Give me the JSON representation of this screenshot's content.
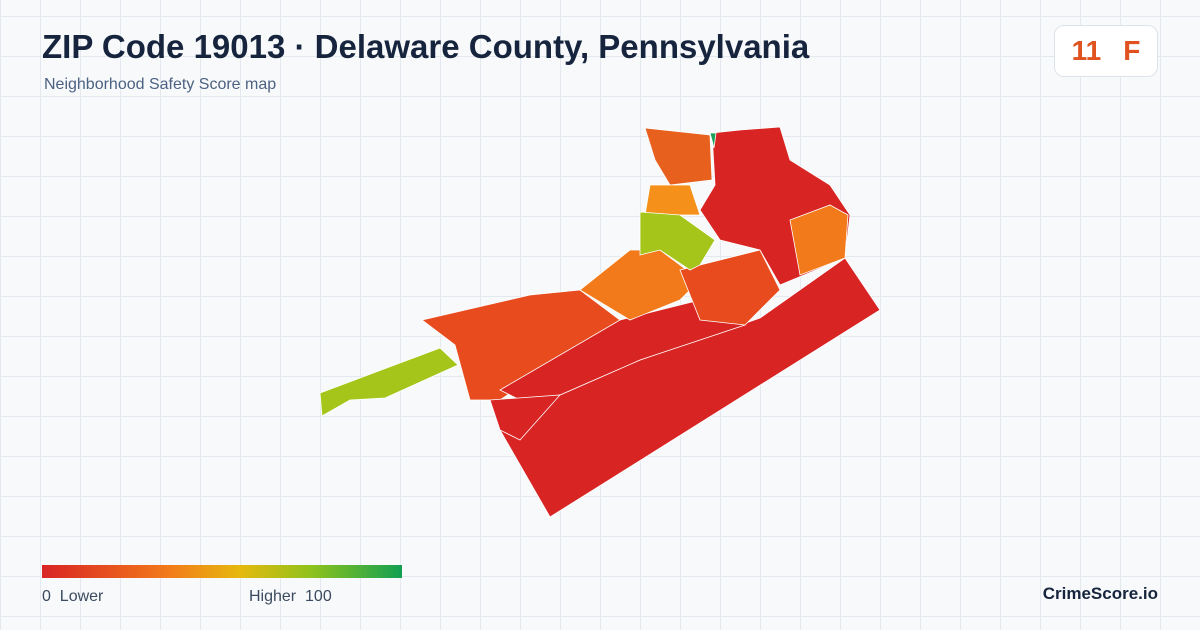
{
  "header": {
    "title": "ZIP Code 19013 · Delaware County, Pennsylvania",
    "subtitle": "Neighborhood Safety Score map"
  },
  "score": {
    "value": 11,
    "grade": "F"
  },
  "legend": {
    "min": 0,
    "min_label": "Lower",
    "max_label": "Higher",
    "max": 100
  },
  "brand": "CrimeScore.io"
}
